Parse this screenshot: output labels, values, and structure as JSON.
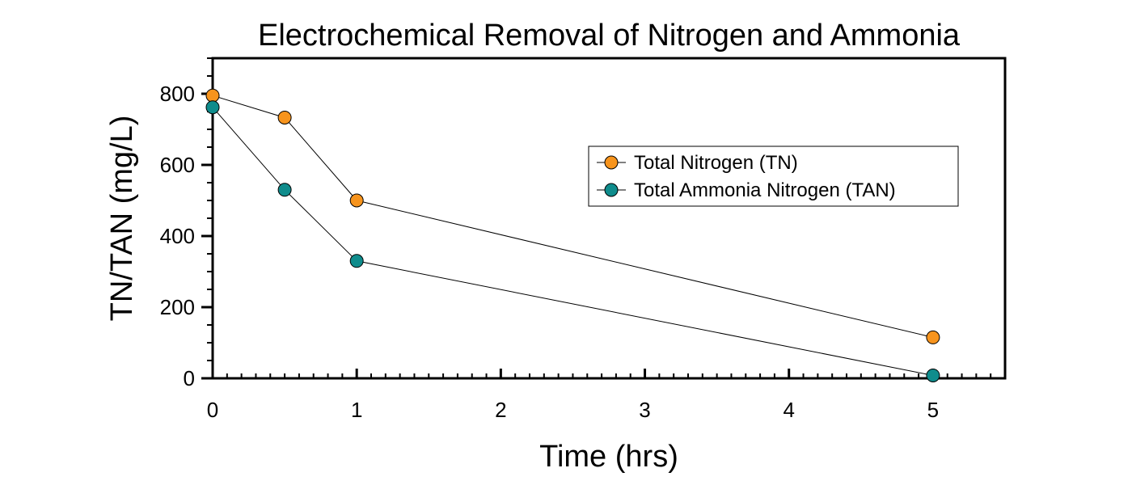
{
  "chart_data": {
    "type": "line",
    "title": "Electrochemical Removal of Nitrogen and Ammonia",
    "xlabel": "Time (hrs)",
    "ylabel": "TN/TAN (mg/L)",
    "xlim": [
      0,
      5.5
    ],
    "ylim": [
      0,
      900
    ],
    "x_ticks": [
      "0",
      "1",
      "2",
      "3",
      "4",
      "5"
    ],
    "y_ticks": [
      "0",
      "200",
      "400",
      "600",
      "800"
    ],
    "grid": false,
    "legend_position": "upper-right",
    "series": [
      {
        "name": "Total Nitrogen (TN)",
        "color": "#f7941d",
        "x": [
          0,
          0.5,
          1,
          5
        ],
        "y": [
          795,
          733,
          500,
          115
        ]
      },
      {
        "name": "Total Ammonia Nitrogen (TAN)",
        "color": "#0f8c8c",
        "x": [
          0,
          0.5,
          1,
          5
        ],
        "y": [
          762,
          530,
          330,
          8
        ]
      }
    ]
  }
}
